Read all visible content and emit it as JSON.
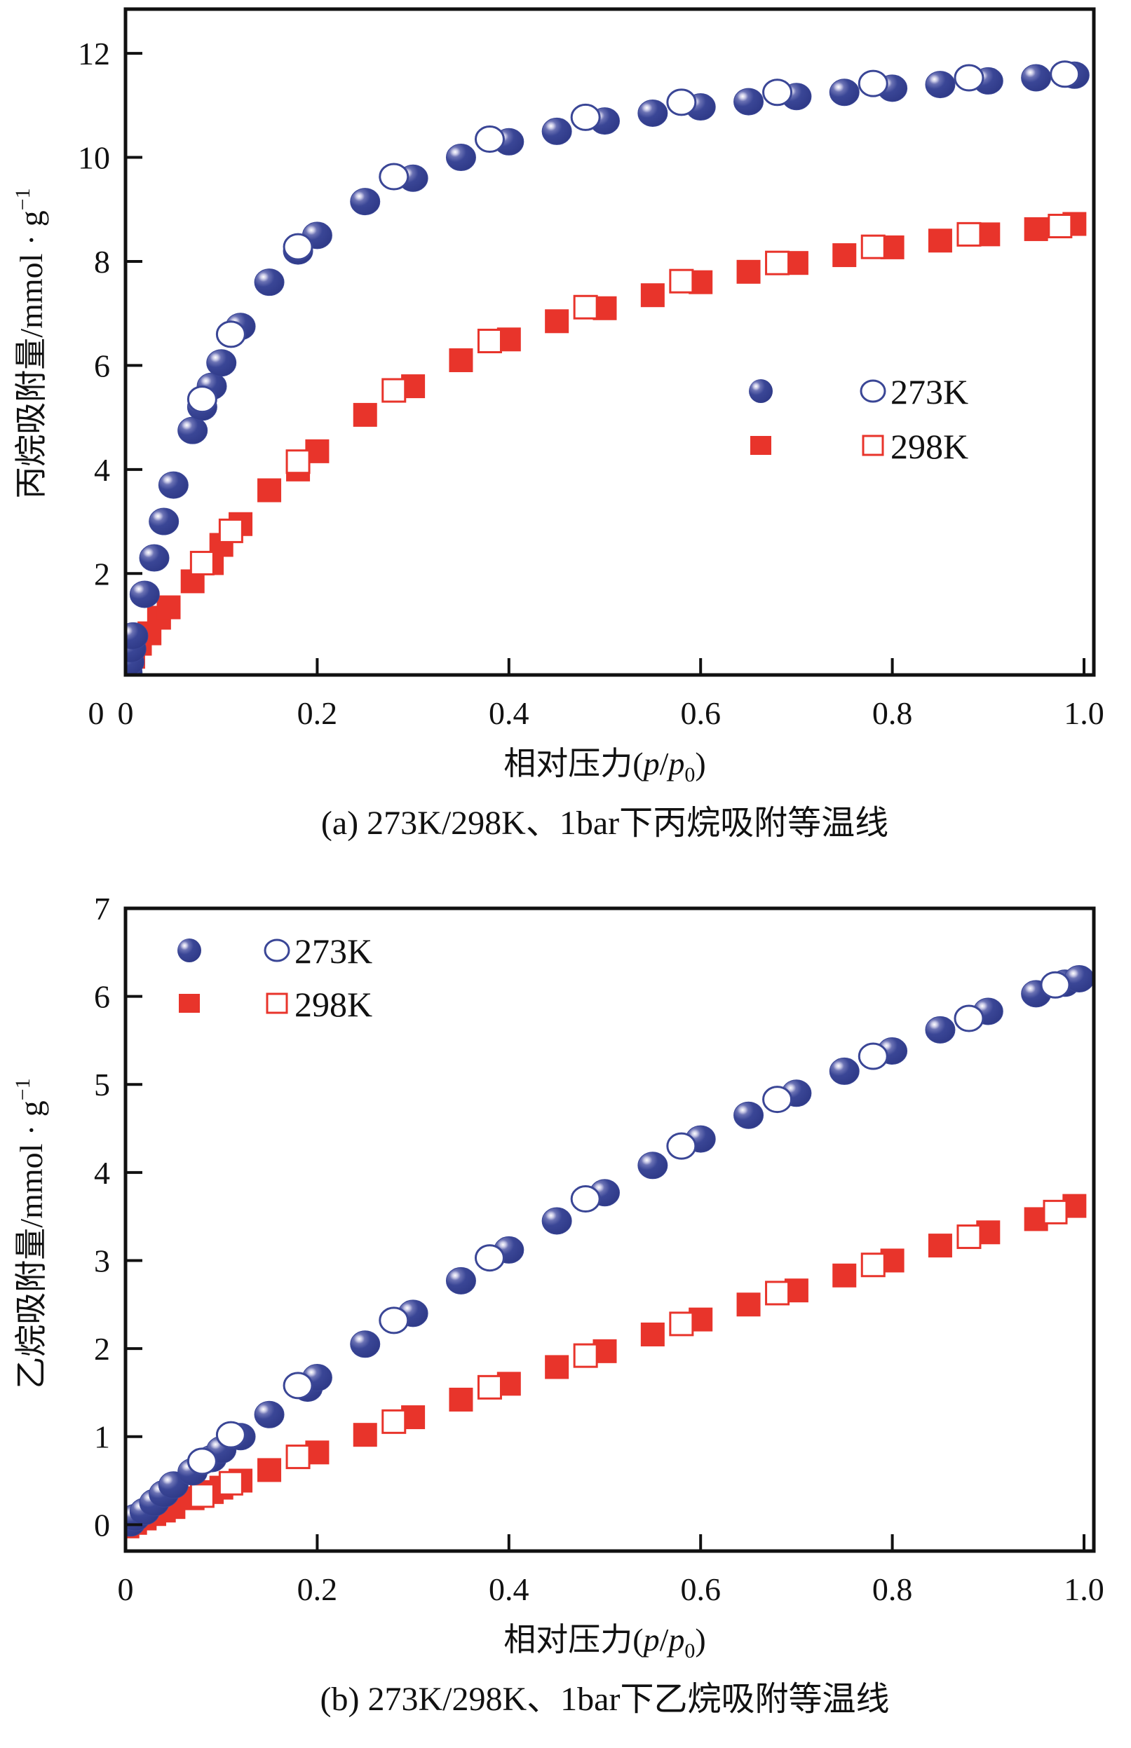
{
  "colors": {
    "series_273K": "#3a4696",
    "series_298K": "#e8342b",
    "axis": "#111111"
  },
  "chart_data": [
    {
      "id": "a",
      "type": "scatter",
      "caption": "(a) 273K/298K、1bar下丙烷吸附等温线",
      "xlabel": "相对压力(p/p0)",
      "xlabel_parts": {
        "prefix": "相对压力(",
        "p": "p",
        "slash": "/",
        "p0": "p",
        "sub": "0",
        "suffix": ")"
      },
      "ylabel": "丙烷吸附量/mmol · g-1",
      "ylabel_parts": {
        "main": "丙烷吸附量/mmol · g",
        "sup": "−1"
      },
      "xlim": [
        0,
        1.05
      ],
      "ylim": [
        0.05,
        12.85
      ],
      "xticks": [
        0,
        0.2,
        0.4,
        0.6,
        0.8,
        1.0
      ],
      "xtick_labels": [
        "0",
        "0.2",
        "0.4",
        "0.6",
        "0.8",
        "1.0"
      ],
      "yticks": [
        2,
        4,
        6,
        8,
        10,
        12
      ],
      "ytick_labels": [
        "2",
        "4",
        "6",
        "8",
        "10",
        "12"
      ],
      "ytick_zero_label": "0",
      "legend": {
        "placement": "center-right",
        "entries": [
          {
            "label": "273K",
            "filled_marker": "sphere",
            "open_marker": "circle"
          },
          {
            "label": "298K",
            "filled_marker": "square",
            "open_marker": "square"
          }
        ]
      },
      "series": [
        {
          "name": "273K adsorption",
          "marker": "sphere",
          "points": [
            [
              0.002,
              0.1
            ],
            [
              0.004,
              0.3
            ],
            [
              0.006,
              0.55
            ],
            [
              0.008,
              0.8
            ],
            [
              0.02,
              1.6
            ],
            [
              0.03,
              2.3
            ],
            [
              0.04,
              3.0
            ],
            [
              0.05,
              3.7
            ],
            [
              0.07,
              4.75
            ],
            [
              0.08,
              5.2
            ],
            [
              0.09,
              5.6
            ],
            [
              0.1,
              6.05
            ],
            [
              0.12,
              6.75
            ],
            [
              0.15,
              7.6
            ],
            [
              0.18,
              8.2
            ],
            [
              0.2,
              8.5
            ],
            [
              0.25,
              9.15
            ],
            [
              0.3,
              9.6
            ],
            [
              0.35,
              10.0
            ],
            [
              0.4,
              10.3
            ],
            [
              0.45,
              10.5
            ],
            [
              0.5,
              10.7
            ],
            [
              0.55,
              10.85
            ],
            [
              0.6,
              10.97
            ],
            [
              0.65,
              11.07
            ],
            [
              0.7,
              11.17
            ],
            [
              0.75,
              11.25
            ],
            [
              0.8,
              11.33
            ],
            [
              0.85,
              11.4
            ],
            [
              0.9,
              11.47
            ],
            [
              0.95,
              11.53
            ],
            [
              0.99,
              11.58
            ]
          ]
        },
        {
          "name": "273K desorption",
          "marker": "circle-open",
          "points": [
            [
              0.08,
              5.35
            ],
            [
              0.11,
              6.6
            ],
            [
              0.18,
              8.28
            ],
            [
              0.28,
              9.63
            ],
            [
              0.38,
              10.35
            ],
            [
              0.48,
              10.77
            ],
            [
              0.58,
              11.06
            ],
            [
              0.68,
              11.25
            ],
            [
              0.78,
              11.42
            ],
            [
              0.88,
              11.53
            ],
            [
              0.98,
              11.6
            ]
          ]
        },
        {
          "name": "298K adsorption",
          "marker": "square",
          "points": [
            [
              0.004,
              0.15
            ],
            [
              0.008,
              0.4
            ],
            [
              0.015,
              0.65
            ],
            [
              0.025,
              0.85
            ],
            [
              0.035,
              1.15
            ],
            [
              0.045,
              1.35
            ],
            [
              0.07,
              1.85
            ],
            [
              0.09,
              2.2
            ],
            [
              0.1,
              2.55
            ],
            [
              0.12,
              2.95
            ],
            [
              0.15,
              3.6
            ],
            [
              0.18,
              4.0
            ],
            [
              0.2,
              4.35
            ],
            [
              0.25,
              5.05
            ],
            [
              0.3,
              5.6
            ],
            [
              0.35,
              6.1
            ],
            [
              0.4,
              6.5
            ],
            [
              0.45,
              6.85
            ],
            [
              0.5,
              7.1
            ],
            [
              0.55,
              7.35
            ],
            [
              0.6,
              7.6
            ],
            [
              0.65,
              7.8
            ],
            [
              0.7,
              7.97
            ],
            [
              0.75,
              8.12
            ],
            [
              0.8,
              8.27
            ],
            [
              0.85,
              8.4
            ],
            [
              0.9,
              8.52
            ],
            [
              0.95,
              8.62
            ],
            [
              0.99,
              8.72
            ]
          ]
        },
        {
          "name": "298K desorption",
          "marker": "square-open",
          "points": [
            [
              0.08,
              2.2
            ],
            [
              0.11,
              2.82
            ],
            [
              0.18,
              4.15
            ],
            [
              0.28,
              5.52
            ],
            [
              0.38,
              6.47
            ],
            [
              0.48,
              7.12
            ],
            [
              0.58,
              7.62
            ],
            [
              0.68,
              7.97
            ],
            [
              0.78,
              8.28
            ],
            [
              0.88,
              8.52
            ],
            [
              0.975,
              8.68
            ]
          ]
        }
      ]
    },
    {
      "id": "b",
      "type": "scatter",
      "caption": "(b) 273K/298K、1bar下乙烷吸附等温线",
      "xlabel": "相对压力(p/p0)",
      "xlabel_parts": {
        "prefix": "相对压力(",
        "p": "p",
        "slash": "/",
        "p0": "p",
        "sub": "0",
        "suffix": ")"
      },
      "ylabel": "乙烷吸附量/mmol · g-1",
      "ylabel_parts": {
        "main": "乙烷吸附量/mmol · g",
        "sup": "−1"
      },
      "xlim": [
        0,
        1.05
      ],
      "ylim": [
        -0.3,
        7.0
      ],
      "xticks": [
        0,
        0.2,
        0.4,
        0.6,
        0.8,
        1.0
      ],
      "xtick_labels": [
        "0",
        "0.2",
        "0.4",
        "0.6",
        "0.8",
        "1.0"
      ],
      "yticks": [
        0,
        1,
        2,
        3,
        4,
        5,
        6,
        7
      ],
      "ytick_labels": [
        "0",
        "1",
        "2",
        "3",
        "4",
        "5",
        "6",
        "7"
      ],
      "legend": {
        "placement": "top-left",
        "entries": [
          {
            "label": "273K",
            "filled_marker": "sphere",
            "open_marker": "circle"
          },
          {
            "label": "298K",
            "filled_marker": "square",
            "open_marker": "square"
          }
        ]
      },
      "series": [
        {
          "name": "273K adsorption",
          "marker": "sphere",
          "points": [
            [
              0.005,
              0.02
            ],
            [
              0.01,
              0.08
            ],
            [
              0.02,
              0.15
            ],
            [
              0.03,
              0.25
            ],
            [
              0.04,
              0.35
            ],
            [
              0.05,
              0.45
            ],
            [
              0.07,
              0.6
            ],
            [
              0.09,
              0.75
            ],
            [
              0.1,
              0.85
            ],
            [
              0.12,
              1.0
            ],
            [
              0.15,
              1.25
            ],
            [
              0.19,
              1.55
            ],
            [
              0.2,
              1.67
            ],
            [
              0.25,
              2.05
            ],
            [
              0.3,
              2.4
            ],
            [
              0.35,
              2.77
            ],
            [
              0.4,
              3.12
            ],
            [
              0.45,
              3.45
            ],
            [
              0.5,
              3.77
            ],
            [
              0.55,
              4.08
            ],
            [
              0.6,
              4.38
            ],
            [
              0.65,
              4.65
            ],
            [
              0.7,
              4.9
            ],
            [
              0.75,
              5.15
            ],
            [
              0.8,
              5.38
            ],
            [
              0.85,
              5.62
            ],
            [
              0.9,
              5.83
            ],
            [
              0.95,
              6.03
            ],
            [
              0.98,
              6.15
            ],
            [
              0.995,
              6.2
            ]
          ]
        },
        {
          "name": "273K desorption",
          "marker": "circle-open",
          "points": [
            [
              0.08,
              0.72
            ],
            [
              0.11,
              1.02
            ],
            [
              0.18,
              1.58
            ],
            [
              0.28,
              2.32
            ],
            [
              0.38,
              3.03
            ],
            [
              0.48,
              3.7
            ],
            [
              0.58,
              4.3
            ],
            [
              0.68,
              4.83
            ],
            [
              0.78,
              5.32
            ],
            [
              0.88,
              5.75
            ],
            [
              0.97,
              6.13
            ]
          ]
        },
        {
          "name": "298K adsorption",
          "marker": "square",
          "points": [
            [
              0.002,
              -0.02
            ],
            [
              0.01,
              0.02
            ],
            [
              0.02,
              0.07
            ],
            [
              0.03,
              0.12
            ],
            [
              0.04,
              0.16
            ],
            [
              0.05,
              0.2
            ],
            [
              0.07,
              0.3
            ],
            [
              0.09,
              0.37
            ],
            [
              0.1,
              0.42
            ],
            [
              0.12,
              0.5
            ],
            [
              0.15,
              0.62
            ],
            [
              0.2,
              0.82
            ],
            [
              0.25,
              1.02
            ],
            [
              0.3,
              1.22
            ],
            [
              0.35,
              1.42
            ],
            [
              0.4,
              1.6
            ],
            [
              0.45,
              1.79
            ],
            [
              0.5,
              1.97
            ],
            [
              0.55,
              2.16
            ],
            [
              0.6,
              2.33
            ],
            [
              0.65,
              2.5
            ],
            [
              0.7,
              2.66
            ],
            [
              0.75,
              2.83
            ],
            [
              0.8,
              3.0
            ],
            [
              0.85,
              3.17
            ],
            [
              0.9,
              3.32
            ],
            [
              0.95,
              3.47
            ],
            [
              0.99,
              3.62
            ]
          ]
        },
        {
          "name": "298K desorption",
          "marker": "square-open",
          "points": [
            [
              0.08,
              0.33
            ],
            [
              0.11,
              0.47
            ],
            [
              0.18,
              0.77
            ],
            [
              0.28,
              1.17
            ],
            [
              0.38,
              1.56
            ],
            [
              0.48,
              1.92
            ],
            [
              0.58,
              2.28
            ],
            [
              0.68,
              2.63
            ],
            [
              0.78,
              2.95
            ],
            [
              0.88,
              3.27
            ],
            [
              0.97,
              3.55
            ]
          ]
        }
      ]
    }
  ]
}
